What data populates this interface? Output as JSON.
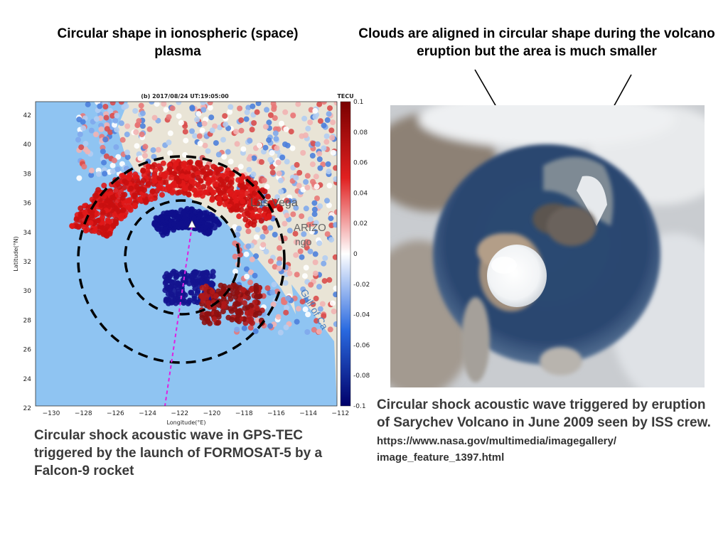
{
  "headings": {
    "left": "Circular shape in ionospheric (space) plasma",
    "right": "Clouds are aligned in circular shape during the volcano eruption but the area is much smaller"
  },
  "map_figure": {
    "title": "(b) 2017/08/24 UT:19:05:00",
    "colorbar_label": "TECU",
    "colorbar_ticks": [
      "0.1",
      "0.08",
      "0.06",
      "0.04",
      "0.02",
      "0",
      "-0.02",
      "-0.04",
      "-0.06",
      "-0.08",
      "-0.1"
    ],
    "x_ticks": [
      "−130",
      "−128",
      "−126",
      "−124",
      "−122",
      "−120",
      "−118",
      "−116",
      "−114",
      "−112"
    ],
    "y_ticks": [
      "42",
      "40",
      "38",
      "36",
      "34",
      "32",
      "30",
      "28",
      "26",
      "24",
      "22"
    ],
    "xlabel": "Longitude(°E)",
    "ylabel": "Latitude(°N)",
    "map_labels": {
      "city": "Las Vega",
      "state1": "ARIZO",
      "state2": "ngo",
      "gulf": "Gulf of Ca"
    }
  },
  "captions": {
    "left": "Circular shock acoustic wave in GPS-TEC triggered by the launch of FORMOSAT-5 by a Falcon-9 rocket",
    "right_main": "Circular shock acoustic wave triggered by eruption of Sarychev Volcano in June 2009 seen by ISS crew.",
    "right_url_1": "https://www.nasa.gov/multimedia/imagegallery/",
    "right_url_2": "image_feature_1397.html"
  },
  "colors": {
    "ocean": "#8fc4f2",
    "positive": "#d42020",
    "negative": "#10108c"
  }
}
